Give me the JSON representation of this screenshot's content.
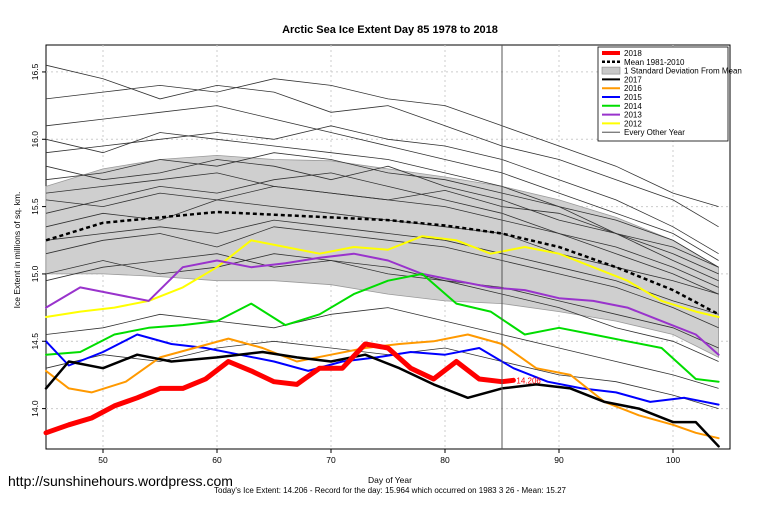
{
  "chart_data": {
    "type": "line",
    "title": "Arctic Sea Ice Extent Day 85 1978 to 2018",
    "xlabel": "Day of Year",
    "ylabel": "Ice Extent in millions of sq. km.",
    "xlim": [
      45,
      105
    ],
    "ylim": [
      13.7,
      16.7
    ],
    "x_ticks": [
      50,
      60,
      70,
      80,
      90,
      100
    ],
    "y_ticks": [
      14.0,
      14.5,
      15.0,
      15.5,
      16.0,
      16.5
    ],
    "y_tick_labels": [
      "14.0",
      "14.5",
      "15.0",
      "15.5",
      "16.0",
      "16.5"
    ],
    "grid": true,
    "legend_position": "top-right",
    "vline_day": 85,
    "current_label": "14.206",
    "footer": "Today's Ice Extent: 14.206  - Record for the day: 15.964 which occurred on 1983 3 26  - Mean: 15.27",
    "watermark": "http://sunshinehours.wordpress.com",
    "legend": [
      {
        "label": "2018",
        "color": "#ff0000",
        "kind": "thick"
      },
      {
        "label": "Mean 1981-2010",
        "color": "#000000",
        "kind": "dashed"
      },
      {
        "label": "1 Standard Deviation From Mean",
        "color": "#c8c8c8",
        "kind": "box"
      },
      {
        "label": "2017",
        "color": "#000000",
        "kind": "line"
      },
      {
        "label": "2016",
        "color": "#ff9900",
        "kind": "line"
      },
      {
        "label": "2015",
        "color": "#0000ff",
        "kind": "line"
      },
      {
        "label": "2014",
        "color": "#00dd00",
        "kind": "line"
      },
      {
        "label": "2013",
        "color": "#9933cc",
        "kind": "line"
      },
      {
        "label": "2012",
        "color": "#ffff00",
        "kind": "line"
      },
      {
        "label": "Every Other Year",
        "color": "#333333",
        "kind": "thin"
      }
    ],
    "band": {
      "x": [
        45,
        50,
        55,
        60,
        65,
        70,
        75,
        80,
        85,
        90,
        95,
        100,
        104
      ],
      "upper": [
        15.65,
        15.78,
        15.85,
        15.88,
        15.85,
        15.84,
        15.78,
        15.72,
        15.65,
        15.55,
        15.42,
        15.25,
        15.05
      ],
      "lower": [
        15.0,
        15.0,
        14.98,
        14.95,
        14.95,
        14.92,
        14.85,
        14.8,
        14.78,
        14.72,
        14.65,
        14.55,
        14.38
      ]
    },
    "mean": {
      "x": [
        45,
        50,
        55,
        60,
        65,
        70,
        75,
        80,
        85,
        90,
        95,
        100,
        104
      ],
      "values": [
        15.25,
        15.38,
        15.42,
        15.46,
        15.44,
        15.42,
        15.4,
        15.36,
        15.3,
        15.2,
        15.05,
        14.88,
        14.7
      ]
    },
    "series": [
      {
        "name": "2018",
        "color": "#ff0000",
        "width": 5,
        "x": [
          45,
          47,
          49,
          51,
          53,
          55,
          57,
          59,
          61,
          63,
          65,
          67,
          69,
          71,
          73,
          75,
          77,
          79,
          81,
          83,
          85,
          86
        ],
        "values": [
          13.82,
          13.88,
          13.93,
          14.02,
          14.08,
          14.15,
          14.15,
          14.22,
          14.35,
          14.28,
          14.2,
          14.18,
          14.3,
          14.3,
          14.48,
          14.45,
          14.3,
          14.22,
          14.35,
          14.22,
          14.2,
          14.21
        ]
      },
      {
        "name": "2017",
        "color": "#000000",
        "width": 2.5,
        "x": [
          45,
          47,
          50,
          53,
          56,
          60,
          64,
          67,
          70,
          73,
          76,
          79,
          82,
          85,
          88,
          91,
          94,
          97,
          100,
          102,
          104
        ],
        "values": [
          14.15,
          14.35,
          14.3,
          14.4,
          14.35,
          14.38,
          14.42,
          14.38,
          14.35,
          14.4,
          14.3,
          14.18,
          14.08,
          14.15,
          14.18,
          14.15,
          14.05,
          14.0,
          13.9,
          13.9,
          13.72
        ]
      },
      {
        "name": "2016",
        "color": "#ff9900",
        "width": 2,
        "x": [
          45,
          47,
          49,
          52,
          55,
          58,
          61,
          64,
          67,
          70,
          73,
          76,
          79,
          82,
          85,
          88,
          91,
          94,
          97,
          100,
          102,
          104
        ],
        "values": [
          14.28,
          14.15,
          14.12,
          14.2,
          14.38,
          14.45,
          14.52,
          14.45,
          14.35,
          14.4,
          14.45,
          14.48,
          14.5,
          14.55,
          14.48,
          14.3,
          14.25,
          14.05,
          13.95,
          13.88,
          13.82,
          13.78
        ]
      },
      {
        "name": "2015",
        "color": "#0000ff",
        "width": 2,
        "x": [
          45,
          47,
          50,
          53,
          56,
          59,
          62,
          65,
          68,
          71,
          74,
          77,
          80,
          83,
          86,
          89,
          92,
          95,
          98,
          101,
          104
        ],
        "values": [
          14.5,
          14.32,
          14.42,
          14.55,
          14.48,
          14.45,
          14.4,
          14.35,
          14.28,
          14.35,
          14.38,
          14.42,
          14.4,
          14.45,
          14.3,
          14.2,
          14.15,
          14.12,
          14.05,
          14.08,
          14.03
        ]
      },
      {
        "name": "2014",
        "color": "#00dd00",
        "width": 2,
        "x": [
          45,
          48,
          51,
          54,
          57,
          60,
          63,
          66,
          69,
          72,
          75,
          78,
          81,
          84,
          87,
          90,
          93,
          96,
          99,
          102,
          104
        ],
        "values": [
          14.4,
          14.42,
          14.55,
          14.6,
          14.62,
          14.65,
          14.78,
          14.62,
          14.7,
          14.85,
          14.95,
          15.0,
          14.78,
          14.72,
          14.55,
          14.6,
          14.55,
          14.5,
          14.45,
          14.22,
          14.2
        ]
      },
      {
        "name": "2013",
        "color": "#9933cc",
        "width": 2,
        "x": [
          45,
          48,
          51,
          54,
          57,
          60,
          63,
          66,
          69,
          72,
          75,
          78,
          81,
          84,
          87,
          90,
          93,
          96,
          99,
          102,
          104
        ],
        "values": [
          14.75,
          14.9,
          14.85,
          14.8,
          15.05,
          15.1,
          15.05,
          15.08,
          15.12,
          15.15,
          15.1,
          15.0,
          14.95,
          14.9,
          14.88,
          14.82,
          14.8,
          14.75,
          14.65,
          14.55,
          14.4
        ]
      },
      {
        "name": "2012",
        "color": "#ffff00",
        "width": 2,
        "x": [
          45,
          48,
          51,
          54,
          57,
          60,
          63,
          66,
          69,
          72,
          75,
          78,
          81,
          84,
          87,
          90,
          93,
          96,
          99,
          102,
          104
        ],
        "values": [
          14.68,
          14.72,
          14.75,
          14.8,
          14.9,
          15.05,
          15.25,
          15.2,
          15.15,
          15.2,
          15.18,
          15.28,
          15.25,
          15.15,
          15.2,
          15.15,
          15.05,
          14.95,
          14.8,
          14.72,
          14.68
        ]
      }
    ],
    "thin_series": [
      [
        15.55,
        15.5,
        15.6,
        15.55,
        15.65,
        15.6,
        15.55,
        15.62,
        15.5,
        15.45,
        15.3,
        15.15,
        15.0
      ],
      [
        15.9,
        15.95,
        16.0,
        16.05,
        16.0,
        16.1,
        16.0,
        15.95,
        15.85,
        15.7,
        15.55,
        15.35,
        15.15
      ],
      [
        16.3,
        16.35,
        16.4,
        16.35,
        16.45,
        16.4,
        16.3,
        16.25,
        16.1,
        15.95,
        15.8,
        15.6,
        15.5
      ],
      [
        15.35,
        15.45,
        15.4,
        15.55,
        15.5,
        15.45,
        15.4,
        15.35,
        15.3,
        15.15,
        15.05,
        14.95,
        14.85
      ],
      [
        16.55,
        16.45,
        16.3,
        16.4,
        16.35,
        16.2,
        16.25,
        16.1,
        15.95,
        15.85,
        15.7,
        15.55,
        15.35
      ],
      [
        15.15,
        15.25,
        15.3,
        15.2,
        15.35,
        15.3,
        15.25,
        15.2,
        15.1,
        15.0,
        14.9,
        14.75,
        14.6
      ],
      [
        15.7,
        15.75,
        15.85,
        15.8,
        15.9,
        15.85,
        15.75,
        15.7,
        15.6,
        15.5,
        15.3,
        15.2,
        15.05
      ],
      [
        14.95,
        15.05,
        15.1,
        15.15,
        15.05,
        15.1,
        15.0,
        14.95,
        14.85,
        14.75,
        14.6,
        14.5,
        14.35
      ],
      [
        16.1,
        16.15,
        16.2,
        16.25,
        16.15,
        16.05,
        15.95,
        15.85,
        15.75,
        15.6,
        15.45,
        15.3,
        15.1
      ],
      [
        15.45,
        15.55,
        15.65,
        15.6,
        15.7,
        15.75,
        15.65,
        15.55,
        15.45,
        15.3,
        15.2,
        15.05,
        14.9
      ],
      [
        15.8,
        15.7,
        15.75,
        15.85,
        15.8,
        15.7,
        15.8,
        15.65,
        15.55,
        15.4,
        15.3,
        15.1,
        14.95
      ],
      [
        15.25,
        15.3,
        15.35,
        15.3,
        15.4,
        15.35,
        15.3,
        15.25,
        15.15,
        15.05,
        14.95,
        14.8,
        14.7
      ],
      [
        14.3,
        14.4,
        14.35,
        14.45,
        14.5,
        14.45,
        14.4,
        14.45,
        14.35,
        14.25,
        14.2,
        14.1,
        14.0
      ],
      [
        14.55,
        14.6,
        14.7,
        14.65,
        14.6,
        14.7,
        14.75,
        14.65,
        14.55,
        14.45,
        14.35,
        14.25,
        14.15
      ],
      [
        15.0,
        15.1,
        15.0,
        15.05,
        15.15,
        15.1,
        15.05,
        14.95,
        14.9,
        14.8,
        14.7,
        14.6,
        14.45
      ],
      [
        15.6,
        15.65,
        15.7,
        15.75,
        15.65,
        15.6,
        15.55,
        15.5,
        15.4,
        15.3,
        15.15,
        15.0,
        14.85
      ],
      [
        16.0,
        15.9,
        16.05,
        16.0,
        15.95,
        15.9,
        15.85,
        15.75,
        15.65,
        15.5,
        15.4,
        15.25,
        15.05
      ]
    ]
  }
}
